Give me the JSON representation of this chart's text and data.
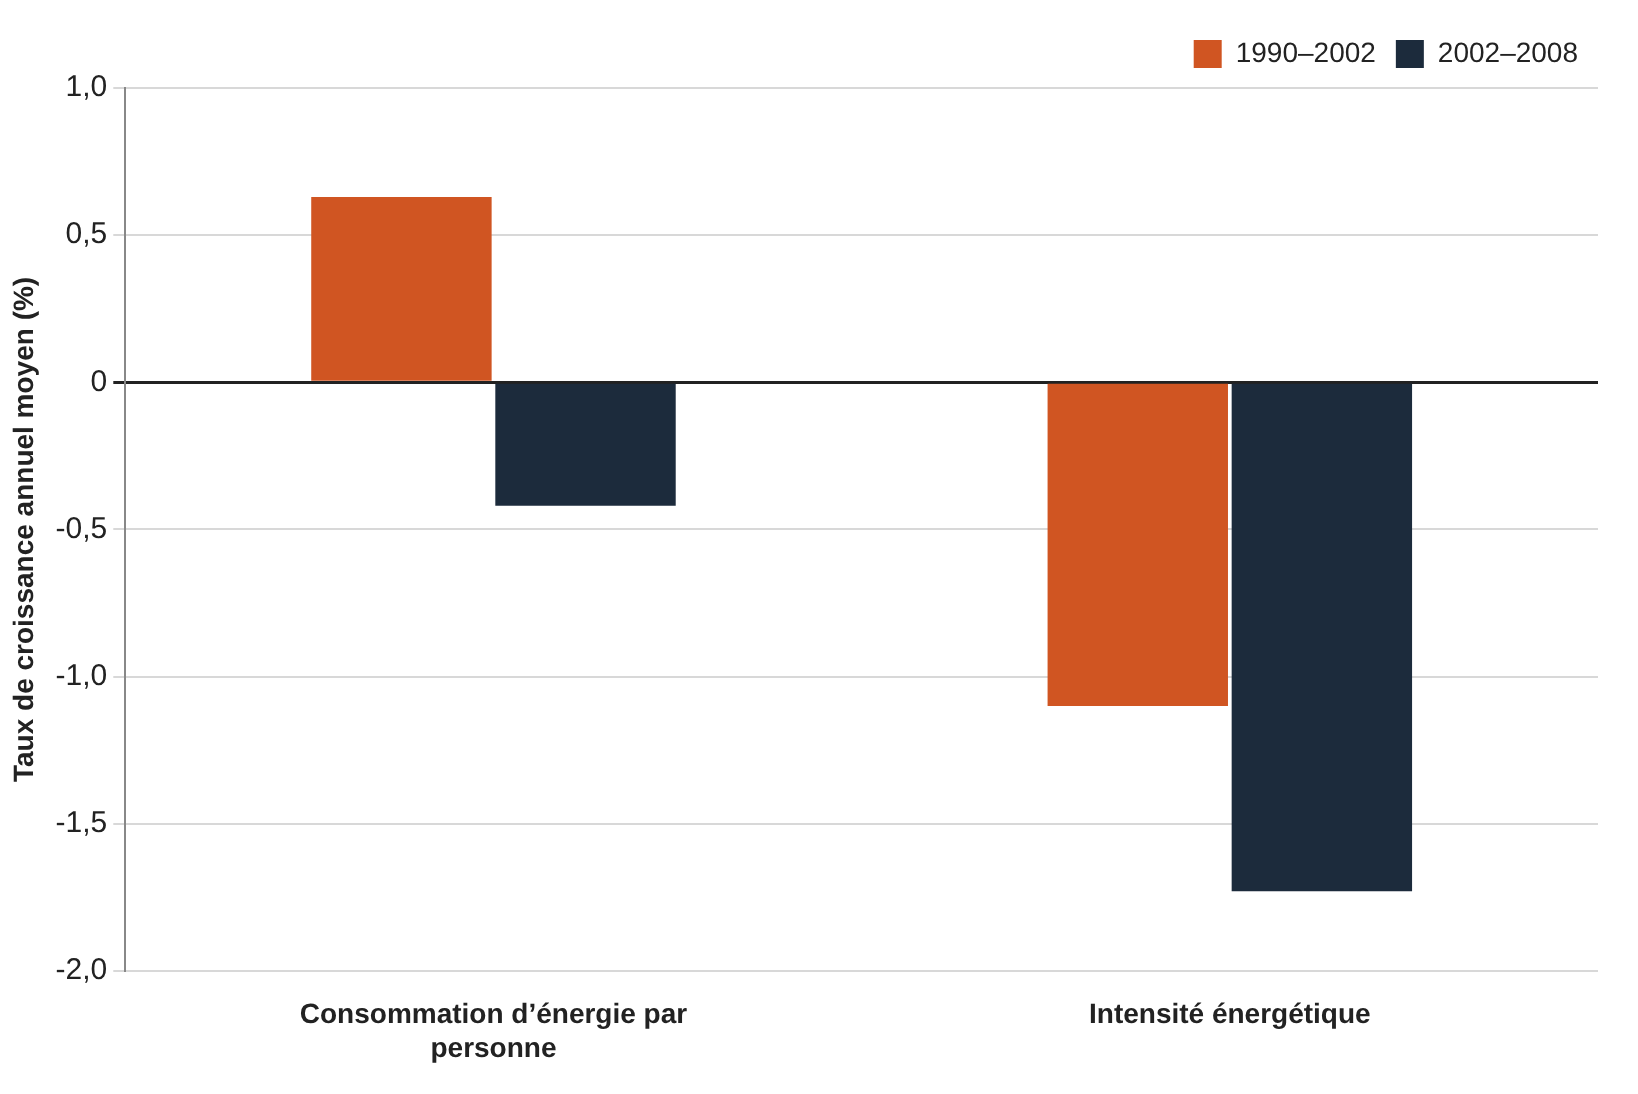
{
  "chart_data": {
    "type": "bar",
    "ylabel": "Taux de croissance annuel moyen (%)",
    "categories": [
      "Consommation d’énergie par personne",
      "Intensité énergétique"
    ],
    "series": [
      {
        "name": "1990–2002",
        "color": "#d05522",
        "values": [
          0.63,
          -1.1
        ]
      },
      {
        "name": "2002–2008",
        "color": "#1c2b3c",
        "values": [
          -0.42,
          -1.73
        ]
      }
    ],
    "ylim": [
      -2,
      1
    ],
    "yticks": [
      {
        "value": -2,
        "label": "-2,0"
      },
      {
        "value": -1.5,
        "label": "-1,5"
      },
      {
        "value": -1,
        "label": "-1,0"
      },
      {
        "value": -0.5,
        "label": "-0,5"
      },
      {
        "value": 0,
        "label": "0"
      },
      {
        "value": 0.5,
        "label": "0,5"
      },
      {
        "value": 1,
        "label": "1,0"
      }
    ],
    "grid": "y",
    "legend": "top right"
  }
}
